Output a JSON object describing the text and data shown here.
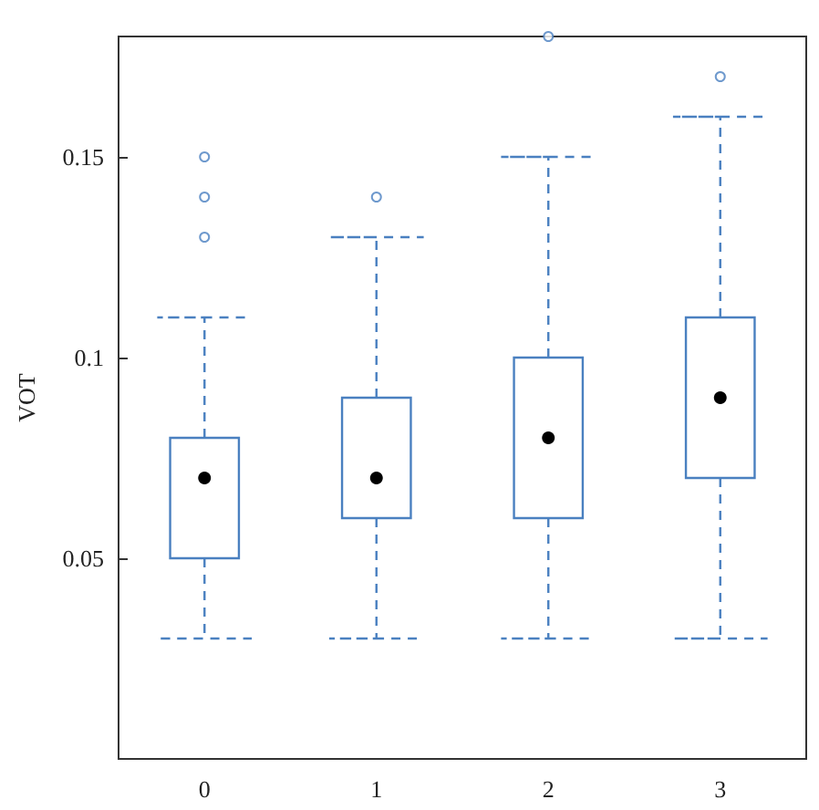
{
  "chart_data": {
    "type": "box",
    "ylabel": "VOT",
    "categories": [
      "0",
      "1",
      "2",
      "3"
    ],
    "series": [
      {
        "color": "#4a80c0",
        "boxes": [
          {
            "low": 0.03,
            "q1": 0.05,
            "median": 0.07,
            "q3": 0.08,
            "high": 0.11,
            "outliers": [
              0.13,
              0.14,
              0.15
            ]
          },
          {
            "low": 0.03,
            "q1": 0.06,
            "median": 0.07,
            "q3": 0.09,
            "high": 0.13,
            "outliers": [
              0.14
            ]
          },
          {
            "low": 0.03,
            "q1": 0.06,
            "median": 0.08,
            "q3": 0.1,
            "high": 0.15,
            "outliers": [
              0.18
            ]
          },
          {
            "low": 0.03,
            "q1": 0.07,
            "median": 0.09,
            "q3": 0.11,
            "high": 0.16,
            "outliers": [
              0.17
            ]
          }
        ]
      }
    ],
    "ylim": [
      0,
      0.18
    ],
    "yticks": [
      0.05,
      0.1,
      0.15
    ],
    "grid": false,
    "line_style": "dashed"
  }
}
